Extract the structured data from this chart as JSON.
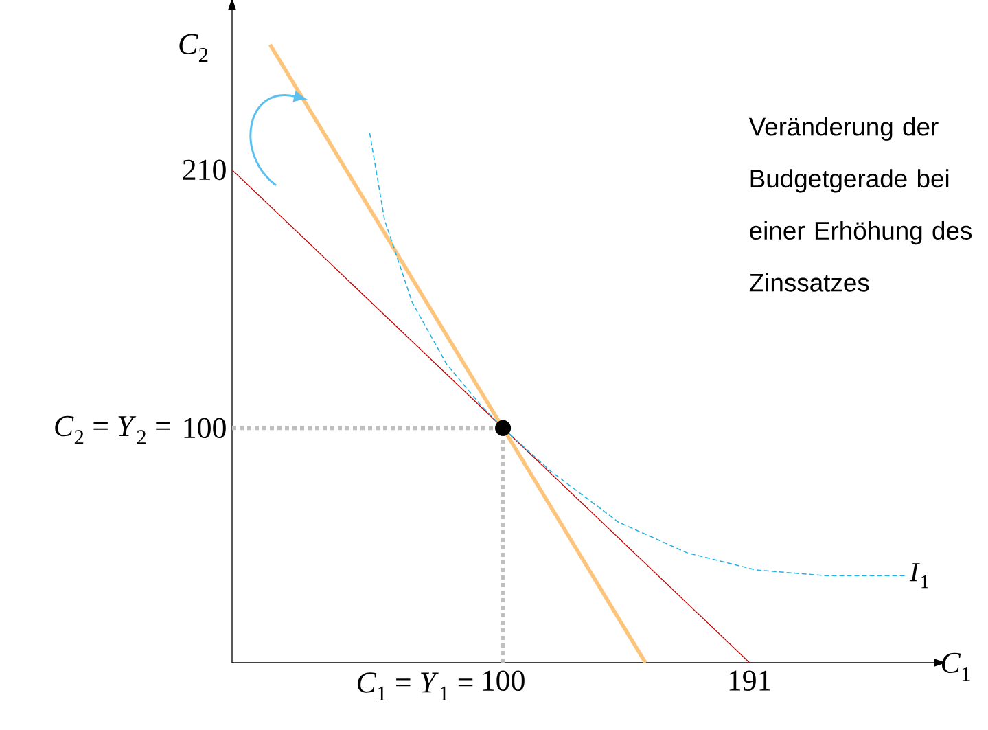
{
  "chart_data": {
    "type": "line",
    "xlabel": "*C*$_{1}$",
    "ylabel": "*C*$_{2}$",
    "xlim": [
      0,
      259
    ],
    "ylim": [
      0,
      278
    ],
    "xticks": [
      100,
      191
    ],
    "yticks": [
      100,
      210
    ],
    "series": [
      {
        "color": "#c00000",
        "x": [
          0,
          191
        ],
        "values": [
          210,
          0
        ]
      },
      {
        "color": "#fdc47c",
        "x": [
          14,
          152.6
        ],
        "values": [
          263.4,
          0
        ]
      },
      {
        "name": "*I*$_{1}$",
        "color": "#1fb0e6",
        "line_style": "dashed",
        "x": [
          50.8,
          56.3,
          66.5,
          79.2,
          91.9,
          100,
          117.3,
          142.6,
          168,
          193.4,
          218.8,
          249.2
        ],
        "values": [
          225.7,
          188.6,
          153.5,
          127.2,
          109.6,
          100,
          81.9,
          59.9,
          46.8,
          39.5,
          37.1,
          37.1
        ]
      },
      {
        "color": "#bfbfbf",
        "line_style": "dotted",
        "x": [
          100,
          100
        ],
        "values": [
          0,
          100
        ]
      },
      {
        "color": "#bfbfbf",
        "line_style": "dotted",
        "x": [
          0,
          100
        ],
        "values": [
          100,
          100
        ]
      },
      {
        "type": "scatter",
        "color": "#000000",
        "marker": "circle",
        "x": [
          100
        ],
        "values": [
          100
        ]
      }
    ],
    "annotations": [
      "Veränderung der Budgetgerade bei einer Erhöhung des Zinssatzes",
      "*C*$_{1}$ = *Y*$_{1}$ =",
      "*C*$_{2}$ = *Y*$_{2}$ ="
    ],
    "grid": false,
    "legend": false
  }
}
